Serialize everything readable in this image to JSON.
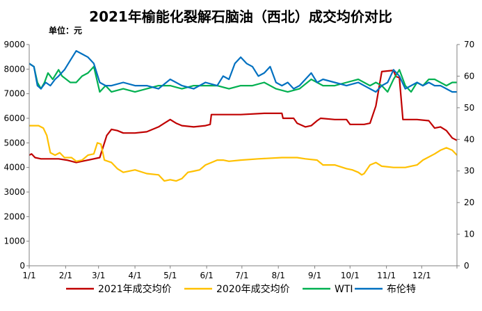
{
  "chart_data": {
    "type": "line",
    "title": "2021年榆能化裂解石脑油（西北）成交均价对比",
    "unit_label": "单位：元",
    "x_ticks": [
      "1/1",
      "2/1",
      "3/1",
      "4/1",
      "5/1",
      "6/1",
      "7/1",
      "8/1",
      "9/1",
      "10/1",
      "11/1",
      "12/1"
    ],
    "y_left": {
      "ticks": [
        "0",
        "1000",
        "2000",
        "3000",
        "4000",
        "5000",
        "6000",
        "7000",
        "8000",
        "9000"
      ],
      "lim": [
        0,
        9000
      ]
    },
    "y_right": {
      "ticks": [
        "0",
        "10",
        "20",
        "30",
        "40",
        "50",
        "60",
        "70"
      ],
      "lim": [
        0,
        70
      ]
    },
    "grid": false,
    "legend_position": "bottom",
    "series": [
      {
        "name": "2021年成交均价",
        "axis": "left",
        "color": "#C00000",
        "style": "solid",
        "points": [
          [
            0,
            4500
          ],
          [
            2,
            4550
          ],
          [
            5,
            4400
          ],
          [
            10,
            4350
          ],
          [
            25,
            4350
          ],
          [
            32,
            4300
          ],
          [
            40,
            4200
          ],
          [
            50,
            4300
          ],
          [
            60,
            4400
          ],
          [
            66,
            5300
          ],
          [
            70,
            5550
          ],
          [
            75,
            5500
          ],
          [
            80,
            5400
          ],
          [
            90,
            5400
          ],
          [
            100,
            5450
          ],
          [
            110,
            5650
          ],
          [
            115,
            5800
          ],
          [
            120,
            5950
          ],
          [
            125,
            5800
          ],
          [
            130,
            5700
          ],
          [
            140,
            5650
          ],
          [
            150,
            5700
          ],
          [
            154,
            5750
          ],
          [
            155,
            6150
          ],
          [
            180,
            6150
          ],
          [
            200,
            6200
          ],
          [
            215,
            6200
          ],
          [
            216,
            6000
          ],
          [
            225,
            6000
          ],
          [
            228,
            5800
          ],
          [
            235,
            5650
          ],
          [
            240,
            5700
          ],
          [
            245,
            5900
          ],
          [
            248,
            6000
          ],
          [
            260,
            5950
          ],
          [
            270,
            5950
          ],
          [
            273,
            5750
          ],
          [
            285,
            5750
          ],
          [
            290,
            5800
          ],
          [
            295,
            6500
          ],
          [
            300,
            7900
          ],
          [
            310,
            7950
          ],
          [
            312,
            7700
          ],
          [
            315,
            7650
          ],
          [
            318,
            5950
          ],
          [
            330,
            5950
          ],
          [
            340,
            5900
          ],
          [
            345,
            5600
          ],
          [
            350,
            5650
          ],
          [
            355,
            5500
          ],
          [
            360,
            5200
          ],
          [
            364,
            5100
          ]
        ]
      },
      {
        "name": "2020年成交均价",
        "axis": "left",
        "color": "#FFC000",
        "style": "solid",
        "points": [
          [
            0,
            5700
          ],
          [
            8,
            5700
          ],
          [
            12,
            5600
          ],
          [
            15,
            5300
          ],
          [
            18,
            4600
          ],
          [
            22,
            4500
          ],
          [
            26,
            4600
          ],
          [
            30,
            4400
          ],
          [
            36,
            4400
          ],
          [
            40,
            4250
          ],
          [
            45,
            4300
          ],
          [
            50,
            4500
          ],
          [
            55,
            4550
          ],
          [
            58,
            5000
          ],
          [
            61,
            4950
          ],
          [
            64,
            4300
          ],
          [
            70,
            4200
          ],
          [
            75,
            3950
          ],
          [
            80,
            3800
          ],
          [
            90,
            3900
          ],
          [
            100,
            3750
          ],
          [
            110,
            3700
          ],
          [
            115,
            3450
          ],
          [
            120,
            3500
          ],
          [
            125,
            3450
          ],
          [
            130,
            3550
          ],
          [
            135,
            3800
          ],
          [
            140,
            3850
          ],
          [
            145,
            3900
          ],
          [
            150,
            4100
          ],
          [
            155,
            4200
          ],
          [
            160,
            4300
          ],
          [
            165,
            4300
          ],
          [
            170,
            4250
          ],
          [
            180,
            4300
          ],
          [
            195,
            4350
          ],
          [
            215,
            4400
          ],
          [
            228,
            4400
          ],
          [
            235,
            4350
          ],
          [
            245,
            4300
          ],
          [
            250,
            4100
          ],
          [
            260,
            4100
          ],
          [
            270,
            3950
          ],
          [
            275,
            3900
          ],
          [
            280,
            3800
          ],
          [
            283,
            3700
          ],
          [
            285,
            3750
          ],
          [
            290,
            4100
          ],
          [
            295,
            4200
          ],
          [
            300,
            4050
          ],
          [
            310,
            4000
          ],
          [
            320,
            4000
          ],
          [
            330,
            4100
          ],
          [
            335,
            4300
          ],
          [
            345,
            4550
          ],
          [
            350,
            4700
          ],
          [
            355,
            4800
          ],
          [
            360,
            4700
          ],
          [
            364,
            4500
          ]
        ]
      },
      {
        "name": "WTI",
        "axis": "right",
        "color": "#00B050",
        "style": "solid",
        "points": [
          [
            0,
            64
          ],
          [
            4,
            63
          ],
          [
            7,
            58
          ],
          [
            10,
            56
          ],
          [
            13,
            58
          ],
          [
            16,
            61
          ],
          [
            20,
            59
          ],
          [
            25,
            62
          ],
          [
            28,
            60
          ],
          [
            35,
            58
          ],
          [
            40,
            58
          ],
          [
            45,
            60
          ],
          [
            50,
            61
          ],
          [
            55,
            63
          ],
          [
            60,
            55
          ],
          [
            65,
            57
          ],
          [
            70,
            55
          ],
          [
            80,
            56
          ],
          [
            90,
            55
          ],
          [
            100,
            56
          ],
          [
            110,
            57
          ],
          [
            120,
            57
          ],
          [
            130,
            56
          ],
          [
            140,
            57
          ],
          [
            150,
            57
          ],
          [
            160,
            57
          ],
          [
            170,
            56
          ],
          [
            180,
            57
          ],
          [
            190,
            57
          ],
          [
            200,
            58
          ],
          [
            210,
            56
          ],
          [
            220,
            55
          ],
          [
            230,
            56
          ],
          [
            240,
            59
          ],
          [
            250,
            57
          ],
          [
            260,
            57
          ],
          [
            270,
            58
          ],
          [
            280,
            59
          ],
          [
            290,
            57
          ],
          [
            295,
            58
          ],
          [
            300,
            57
          ],
          [
            305,
            55
          ],
          [
            310,
            59
          ],
          [
            315,
            62
          ],
          [
            320,
            57
          ],
          [
            325,
            55
          ],
          [
            330,
            58
          ],
          [
            335,
            57
          ],
          [
            340,
            59
          ],
          [
            345,
            59
          ],
          [
            350,
            58
          ],
          [
            355,
            57
          ],
          [
            360,
            58
          ],
          [
            364,
            58
          ]
        ]
      },
      {
        "name": "布伦特",
        "axis": "right",
        "color": "#0070C0",
        "style": "solid",
        "points": [
          [
            0,
            64
          ],
          [
            4,
            63
          ],
          [
            7,
            57
          ],
          [
            10,
            56
          ],
          [
            14,
            58
          ],
          [
            18,
            57
          ],
          [
            22,
            59
          ],
          [
            25,
            60
          ],
          [
            30,
            62
          ],
          [
            35,
            65
          ],
          [
            40,
            68
          ],
          [
            45,
            67
          ],
          [
            50,
            66
          ],
          [
            55,
            64
          ],
          [
            60,
            58
          ],
          [
            65,
            57
          ],
          [
            70,
            57
          ],
          [
            80,
            58
          ],
          [
            90,
            57
          ],
          [
            100,
            57
          ],
          [
            110,
            56
          ],
          [
            120,
            59
          ],
          [
            130,
            57
          ],
          [
            140,
            56
          ],
          [
            150,
            58
          ],
          [
            160,
            57
          ],
          [
            165,
            60
          ],
          [
            170,
            59
          ],
          [
            175,
            64
          ],
          [
            180,
            66
          ],
          [
            185,
            64
          ],
          [
            190,
            63
          ],
          [
            195,
            60
          ],
          [
            200,
            61
          ],
          [
            205,
            63
          ],
          [
            210,
            58
          ],
          [
            215,
            57
          ],
          [
            220,
            58
          ],
          [
            225,
            56
          ],
          [
            230,
            57
          ],
          [
            240,
            61
          ],
          [
            245,
            58
          ],
          [
            250,
            59
          ],
          [
            260,
            58
          ],
          [
            270,
            57
          ],
          [
            280,
            58
          ],
          [
            290,
            56
          ],
          [
            295,
            55
          ],
          [
            300,
            57
          ],
          [
            305,
            58
          ],
          [
            310,
            62
          ],
          [
            315,
            60
          ],
          [
            320,
            56
          ],
          [
            325,
            57
          ],
          [
            330,
            58
          ],
          [
            335,
            57
          ],
          [
            340,
            58
          ],
          [
            345,
            57
          ],
          [
            350,
            57
          ],
          [
            355,
            56
          ],
          [
            360,
            55
          ],
          [
            364,
            55
          ]
        ]
      }
    ]
  }
}
